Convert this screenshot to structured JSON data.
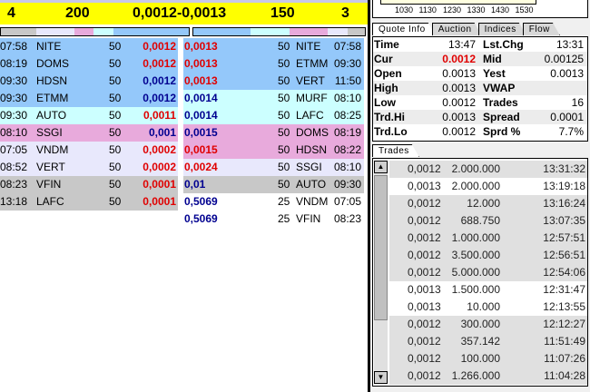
{
  "header": {
    "bid_count": "4",
    "bid_size": "200",
    "spread": "0,0012-0,0013",
    "ask_size": "150",
    "ask_count": "3"
  },
  "colors": {
    "blue": "#94c8fa",
    "cyan": "#ccffff",
    "pink": "#e8aadc",
    "lavender": "#e8e8fc",
    "gray": "#c8c8c8",
    "red": "#e00000",
    "navy": "#000090"
  },
  "bids": [
    {
      "time": "07:58",
      "mm": "NITE",
      "size": "50",
      "price": "0,0012",
      "pc": "red",
      "bg": "blue"
    },
    {
      "time": "08:19",
      "mm": "DOMS",
      "size": "50",
      "price": "0,0012",
      "pc": "red",
      "bg": "blue"
    },
    {
      "time": "09:30",
      "mm": "HDSN",
      "size": "50",
      "price": "0,0012",
      "pc": "blue",
      "bg": "blue"
    },
    {
      "time": "09:30",
      "mm": "ETMM",
      "size": "50",
      "price": "0,0012",
      "pc": "blue",
      "bg": "blue"
    },
    {
      "time": "09:30",
      "mm": "AUTO",
      "size": "50",
      "price": "0,0011",
      "pc": "red",
      "bg": "cyan"
    },
    {
      "time": "08:10",
      "mm": "SSGI",
      "size": "50",
      "price": "0,001",
      "pc": "blue",
      "bg": "pink"
    },
    {
      "time": "07:05",
      "mm": "VNDM",
      "size": "50",
      "price": "0,0002",
      "pc": "red",
      "bg": "lavender"
    },
    {
      "time": "08:52",
      "mm": "VERT",
      "size": "50",
      "price": "0,0002",
      "pc": "red",
      "bg": "lavender"
    },
    {
      "time": "08:23",
      "mm": "VFIN",
      "size": "50",
      "price": "0,0001",
      "pc": "red",
      "bg": "gray"
    },
    {
      "time": "13:18",
      "mm": "LAFC",
      "size": "50",
      "price": "0,0001",
      "pc": "red",
      "bg": "gray"
    }
  ],
  "asks": [
    {
      "price": "0,0013",
      "pc": "red",
      "size": "50",
      "mm": "NITE",
      "time": "07:58",
      "bg": "blue"
    },
    {
      "price": "0,0013",
      "pc": "red",
      "size": "50",
      "mm": "ETMM",
      "time": "09:30",
      "bg": "blue"
    },
    {
      "price": "0,0013",
      "pc": "red",
      "size": "50",
      "mm": "VERT",
      "time": "11:50",
      "bg": "blue"
    },
    {
      "price": "0,0014",
      "pc": "blue",
      "size": "50",
      "mm": "MURF",
      "time": "08:10",
      "bg": "cyan"
    },
    {
      "price": "0,0014",
      "pc": "blue",
      "size": "50",
      "mm": "LAFC",
      "time": "08:25",
      "bg": "cyan"
    },
    {
      "price": "0,0015",
      "pc": "blue",
      "size": "50",
      "mm": "DOMS",
      "time": "08:19",
      "bg": "pink"
    },
    {
      "price": "0,0015",
      "pc": "red",
      "size": "50",
      "mm": "HDSN",
      "time": "08:22",
      "bg": "pink"
    },
    {
      "price": "0,0024",
      "pc": "red",
      "size": "50",
      "mm": "SSGI",
      "time": "08:10",
      "bg": "lavender"
    },
    {
      "price": "0,01",
      "pc": "blue",
      "size": "50",
      "mm": "AUTO",
      "time": "09:30",
      "bg": "gray"
    },
    {
      "price": "0,5069",
      "pc": "blue",
      "size": "25",
      "mm": "VNDM",
      "time": "07:05",
      "bg": "white"
    },
    {
      "price": "0,5069",
      "pc": "blue",
      "size": "25",
      "mm": "VFIN",
      "time": "08:23",
      "bg": "white"
    }
  ],
  "chart": {
    "ticks": [
      "1030",
      "1130",
      "1230",
      "1330",
      "1430",
      "1530"
    ]
  },
  "tabs": [
    "Quote Info",
    "Auction",
    "Indices",
    "Flow"
  ],
  "quote": [
    {
      "l1": "Time",
      "v1": "13:47",
      "l2": "Lst.Chg",
      "v2": "13:31"
    },
    {
      "l1": "Cur",
      "v1": "0.0012",
      "l2": "Mid",
      "v2": "0.00125",
      "cur": true
    },
    {
      "l1": "Open",
      "v1": "0.0013",
      "l2": "Yest",
      "v2": "0.0013"
    },
    {
      "l1": "High",
      "v1": "0.0013",
      "l2": "VWAP",
      "v2": ""
    },
    {
      "l1": "Low",
      "v1": "0.0012",
      "l2": "Trades",
      "v2": "16"
    },
    {
      "l1": "Trd.Hi",
      "v1": "0.0013",
      "l2": "Spread",
      "v2": "0.0001"
    },
    {
      "l1": "Trd.Lo",
      "v1": "0.0012",
      "l2": "Sprd %",
      "v2": "7.7%"
    }
  ],
  "trades_tab": "Trades",
  "trades": [
    {
      "price": "0,0012",
      "qty": "2.000.000",
      "time": "13:31:32"
    },
    {
      "price": "0,0013",
      "qty": "2.000.000",
      "time": "13:19:18"
    },
    {
      "price": "0,0012",
      "qty": "12.000",
      "time": "13:16:24"
    },
    {
      "price": "0,0012",
      "qty": "688.750",
      "time": "13:07:35"
    },
    {
      "price": "0,0012",
      "qty": "1.000.000",
      "time": "12:57:51"
    },
    {
      "price": "0,0012",
      "qty": "3.500.000",
      "time": "12:56:51"
    },
    {
      "price": "0,0012",
      "qty": "5.000.000",
      "time": "12:54:06"
    },
    {
      "price": "0,0013",
      "qty": "1.500.000",
      "time": "12:31:47"
    },
    {
      "price": "0,0013",
      "qty": "10.000",
      "time": "12:13:55"
    },
    {
      "price": "0,0012",
      "qty": "300.000",
      "time": "12:12:27"
    },
    {
      "price": "0,0012",
      "qty": "357.142",
      "time": "11:51:49"
    },
    {
      "price": "0,0012",
      "qty": "100.000",
      "time": "11:07:26"
    },
    {
      "price": "0,0012",
      "qty": "1.266.000",
      "time": "11:04:28"
    }
  ]
}
